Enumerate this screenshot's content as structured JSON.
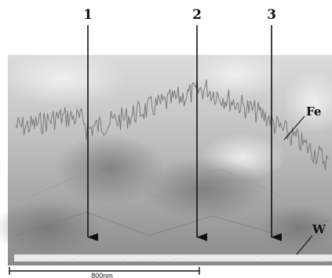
{
  "figure": {
    "markers": [
      {
        "label": "1"
      },
      {
        "label": "2"
      },
      {
        "label": "3"
      }
    ],
    "profiles": {
      "fe_label": "Fe",
      "w_label": "W"
    },
    "scale_bar": {
      "label": "800nm"
    },
    "colors": {
      "fe_trace": "#7a7a7a",
      "w_trace": "#f4f4f4",
      "arrow": "#111111"
    }
  }
}
